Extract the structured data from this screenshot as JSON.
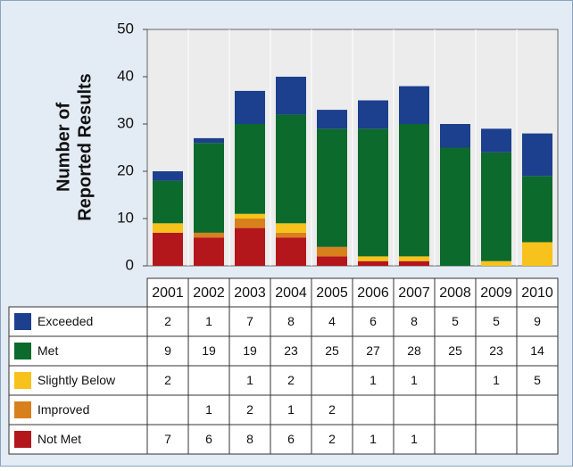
{
  "chart_data": {
    "type": "stacked_bar",
    "ylabel": [
      "Number of",
      "Reported Results"
    ],
    "categories": [
      "2001",
      "2002",
      "2003",
      "2004",
      "2005",
      "2006",
      "2007",
      "2008",
      "2009",
      "2010"
    ],
    "series": [
      {
        "name": "Not Met",
        "color": "#b3161b",
        "values": [
          7,
          6,
          8,
          6,
          2,
          1,
          1,
          null,
          null,
          null
        ]
      },
      {
        "name": "Improved",
        "color": "#d8801c",
        "values": [
          null,
          1,
          2,
          1,
          2,
          null,
          null,
          null,
          null,
          null
        ]
      },
      {
        "name": "Slightly Below",
        "color": "#f7c21b",
        "values": [
          2,
          null,
          1,
          2,
          null,
          1,
          1,
          null,
          1,
          5
        ]
      },
      {
        "name": "Met",
        "color": "#0b6a2c",
        "values": [
          9,
          19,
          19,
          23,
          25,
          27,
          28,
          25,
          23,
          14
        ]
      },
      {
        "name": "Exceeded",
        "color": "#1c3f8e",
        "values": [
          2,
          1,
          7,
          8,
          4,
          6,
          8,
          5,
          5,
          9
        ]
      }
    ],
    "table_order": [
      4,
      3,
      2,
      1,
      0
    ],
    "ylim": [
      0,
      50
    ],
    "yticks": [
      0,
      10,
      20,
      30,
      40,
      50
    ],
    "grid": false
  }
}
